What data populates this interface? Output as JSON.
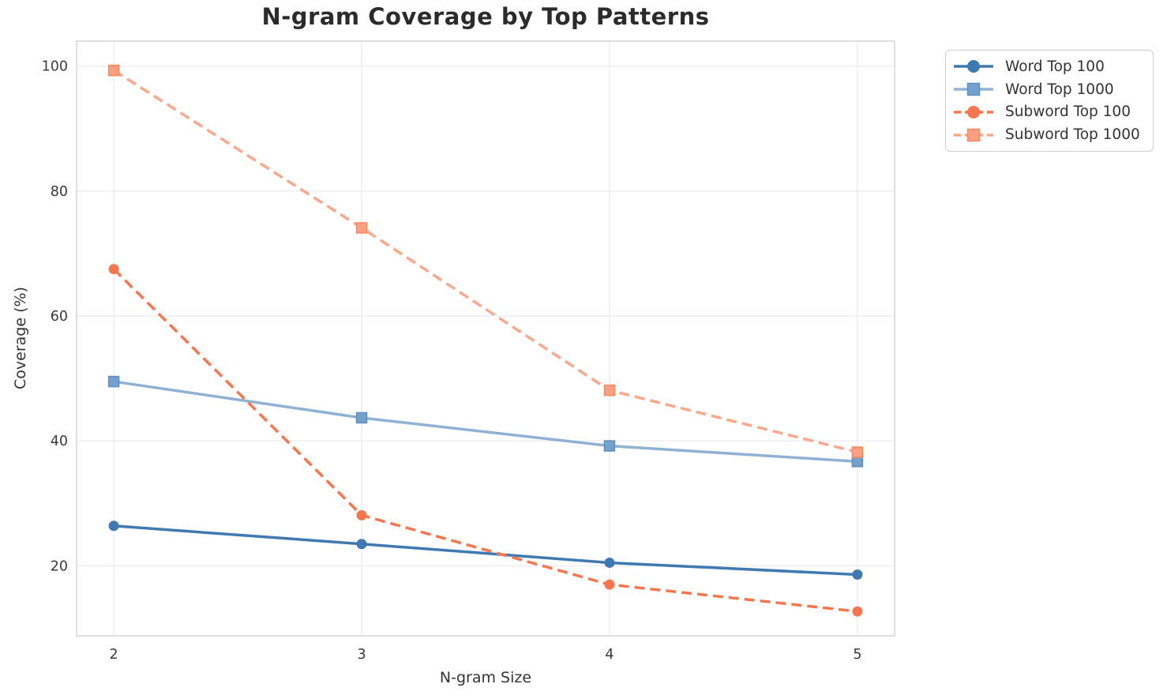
{
  "figure": {
    "background": "#ffffff"
  },
  "chart_data": {
    "type": "line",
    "title": "N-gram Coverage by Top Patterns",
    "xlabel": "N-gram Size",
    "ylabel": "Coverage (%)",
    "x": [
      2,
      3,
      4,
      5
    ],
    "xticks": [
      "2",
      "3",
      "4",
      "5"
    ],
    "yticks": [
      20,
      40,
      60,
      80,
      100
    ],
    "xlim": [
      1.85,
      5.15
    ],
    "ylim": [
      8.8,
      104
    ],
    "grid": true,
    "grid_color": "#ebebf0",
    "spine_color": "#d7d7de",
    "legend_position": "outside-top-right",
    "series": [
      {
        "name": "Word Top 100",
        "values": [
          26.4,
          23.5,
          20.5,
          18.6
        ],
        "color": "#3E79B1",
        "marker_color": "#3E79B1",
        "edge_color": "#3E79B1",
        "line_style": "solid",
        "marker": "circle"
      },
      {
        "name": "Word Top 1000",
        "values": [
          49.5,
          43.7,
          39.2,
          36.7
        ],
        "color": "#8FB2D4",
        "marker_color": "#74A0CB",
        "edge_color": "#5B90C0",
        "line_style": "solid",
        "marker": "square"
      },
      {
        "name": "Subword Top 100",
        "values": [
          67.5,
          28.1,
          17.0,
          12.7
        ],
        "color": "#F8764E",
        "marker_color": "#F8764E",
        "edge_color": "#F8764E",
        "line_style": "dashed",
        "marker": "circle"
      },
      {
        "name": "Subword Top 1000",
        "values": [
          99.3,
          74.1,
          48.1,
          38.2
        ],
        "color": "#FBA78C",
        "marker_color": "#FBA081",
        "edge_color": "#F9885F",
        "line_style": "dashed",
        "marker": "square"
      }
    ]
  }
}
